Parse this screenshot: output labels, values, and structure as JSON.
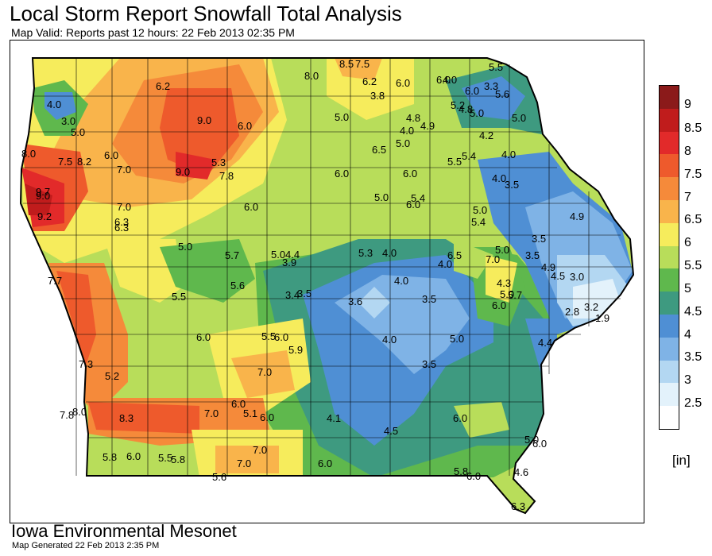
{
  "header": {
    "title": "Local Storm Report Snowfall Total Analysis",
    "subtitle": "Map Valid: Reports past 12 hours: 22 Feb 2013 02:35 PM"
  },
  "legend": {
    "units": "[in]",
    "levels": [
      {
        "label": "9",
        "color": "#8b1a1a"
      },
      {
        "label": "8.5",
        "color": "#c01c1c"
      },
      {
        "label": "8",
        "color": "#e22a2a"
      },
      {
        "label": "7.5",
        "color": "#ee5a2c"
      },
      {
        "label": "7",
        "color": "#f58a3a"
      },
      {
        "label": "6.5",
        "color": "#f9b44b"
      },
      {
        "label": "6",
        "color": "#f6ec5c"
      },
      {
        "label": "5.5",
        "color": "#b8dd5a"
      },
      {
        "label": "5",
        "color": "#5fb84d"
      },
      {
        "label": "4.5",
        "color": "#3e9a80"
      },
      {
        "label": "4",
        "color": "#4f8fd4"
      },
      {
        "label": "3.5",
        "color": "#7fb3e6"
      },
      {
        "label": "3",
        "color": "#b3d7f2"
      },
      {
        "label": "2.5",
        "color": "#e3f2fb"
      },
      {
        "label": "",
        "color": "#ffffff"
      }
    ]
  },
  "map": {
    "region": "Iowa",
    "reports": [
      "4.0",
      "3.0",
      "5.0",
      "8.0",
      "7.5",
      "8.2",
      "6.0",
      "7.0",
      "9.7",
      "9.0",
      "9.2",
      "7.0",
      "6.3",
      "6.3",
      "6.2",
      "9.0",
      "9.0",
      "5.3",
      "7.8",
      "6.0",
      "6.0",
      "8.0",
      "8.5",
      "7.5",
      "6.2",
      "3.8",
      "6.0",
      "6.0",
      "4.0",
      "5.5",
      "3.3",
      "6.0",
      "5.6",
      "5.2",
      "4.8",
      "5.0",
      "5.0",
      "4.8",
      "4.0",
      "4.9",
      "6.5",
      "5.0",
      "4.2",
      "4.0",
      "5.4",
      "5.5",
      "5.0",
      "6.0",
      "6.0",
      "4.0",
      "3.5",
      "5.0",
      "5.4",
      "6.0",
      "5.0",
      "5.4",
      "5.0",
      "4.9",
      "3.5",
      "3.5",
      "4.9",
      "4.5",
      "3.0",
      "4.3",
      "5.7",
      "6.0",
      "2.8",
      "3.2",
      "1.9",
      "4.4",
      "5.0",
      "7.0",
      "5.0",
      "5.7",
      "5.0",
      "4.4",
      "3.9",
      "5.3",
      "4.0",
      "4.0",
      "6.5",
      "4.0",
      "3.4",
      "3.5",
      "3.6",
      "3.5",
      "4.0",
      "5.0",
      "3.5",
      "5.5",
      "5.6",
      "5.5",
      "6.0",
      "5.9",
      "7.7",
      "7.3",
      "5.2",
      "6.0",
      "7.0",
      "7.8",
      "8.0",
      "8.3",
      "7.0",
      "6.0",
      "5.1",
      "6.0",
      "4.1",
      "4.5",
      "6.0",
      "5.8",
      "6.0",
      "5.5",
      "5.8",
      "7.0",
      "7.0",
      "5.6",
      "6.0",
      "5.8",
      "6.0",
      "4.6",
      "6.3",
      "5.0",
      "6.0"
    ]
  },
  "footer": {
    "organization": "Iowa Environmental Mesonet",
    "generated": "Map Generated 22 Feb 2013 2:35 PM"
  }
}
